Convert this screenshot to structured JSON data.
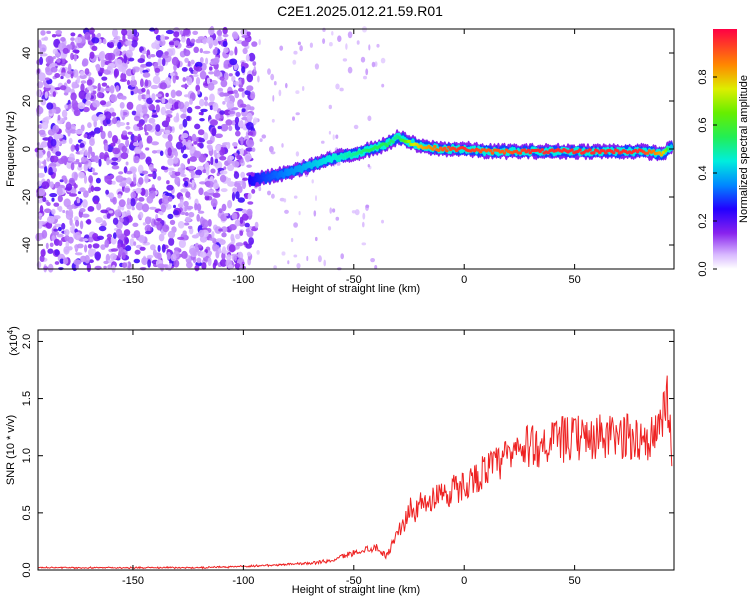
{
  "title": "C2E1.2025.012.21.59.R01",
  "chart_data": [
    {
      "type": "heatmap",
      "xlabel": "Height of straight line (km)",
      "ylabel": "Frequency (Hz)",
      "xlim": [
        -193,
        95
      ],
      "ylim": [
        -50,
        50
      ],
      "xticks": [
        -150,
        -100,
        -50,
        0,
        50
      ],
      "yticks": [
        -40,
        -20,
        0,
        20,
        40
      ],
      "colorbar": {
        "label": "Normalized spectral amplitude",
        "range": [
          0,
          1
        ],
        "ticks": [
          0.0,
          0.2,
          0.4,
          0.6,
          0.8
        ]
      },
      "ridge": {
        "x": [
          -97,
          -90,
          -80,
          -70,
          -60,
          -50,
          -42,
          -35,
          -30,
          -25,
          -20,
          -10,
          0,
          10,
          20,
          30,
          40,
          50,
          60,
          70,
          80,
          90,
          94
        ],
        "freq": [
          -13,
          -12,
          -10,
          -7,
          -4,
          -2,
          0,
          2,
          5,
          3,
          1,
          0,
          0,
          -1,
          -1,
          -1,
          -1,
          -1,
          -1,
          -1,
          -1,
          -2,
          1
        ],
        "amplitude": [
          0.25,
          0.3,
          0.35,
          0.4,
          0.45,
          0.5,
          0.55,
          0.55,
          0.5,
          0.7,
          0.8,
          0.9,
          0.95,
          0.9,
          0.9,
          0.95,
          0.95,
          0.95,
          0.95,
          0.95,
          0.95,
          0.8,
          0.4
        ]
      }
    },
    {
      "type": "line",
      "xlabel": "Height of straight line (km)",
      "ylabel": "SNR (10 * v/v)",
      "scale_note": "(x10",
      "scale_exp": "4",
      "xlim": [
        -193,
        95
      ],
      "ylim": [
        0,
        2.1
      ],
      "xticks": [
        -150,
        -100,
        -50,
        0,
        50
      ],
      "yticks": [
        0.0,
        0.5,
        1.0,
        1.5,
        2.0
      ],
      "series": [
        {
          "color": "#ee2222",
          "x": [
            -193,
            -150,
            -120,
            -100,
            -80,
            -70,
            -60,
            -55,
            -50,
            -45,
            -40,
            -35,
            -30,
            -27,
            -25,
            -22,
            -20,
            -17,
            -15,
            -12,
            -10,
            -7,
            -5,
            -2,
            0,
            3,
            5,
            8,
            10,
            15,
            20,
            25,
            30,
            35,
            40,
            45,
            50,
            55,
            60,
            65,
            70,
            75,
            80,
            85,
            88,
            90,
            92,
            94
          ],
          "y": [
            0.02,
            0.02,
            0.02,
            0.03,
            0.05,
            0.06,
            0.08,
            0.12,
            0.15,
            0.18,
            0.2,
            0.12,
            0.35,
            0.4,
            0.55,
            0.5,
            0.6,
            0.55,
            0.62,
            0.66,
            0.7,
            0.65,
            0.72,
            0.7,
            0.75,
            0.78,
            0.8,
            0.85,
            0.88,
            0.92,
            1.0,
            1.05,
            1.08,
            1.1,
            1.12,
            1.14,
            1.15,
            1.15,
            1.16,
            1.15,
            1.16,
            1.17,
            1.15,
            1.16,
            1.2,
            1.3,
            1.5,
            1.1
          ]
        }
      ]
    }
  ]
}
